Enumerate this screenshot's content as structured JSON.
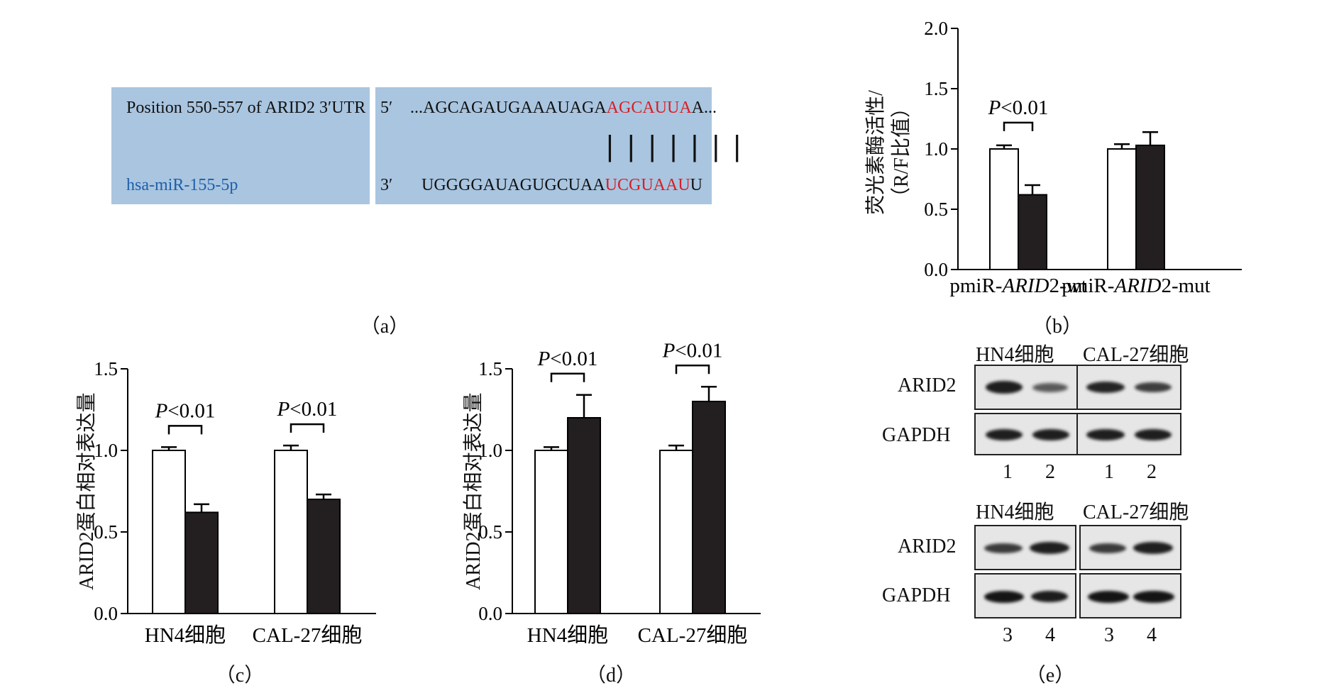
{
  "panel_a": {
    "label": "（a）",
    "row1_label": "Position 550-557 of ARID2 3′UTR",
    "row2_label": "hsa-miR-155-5p",
    "row1_end": "5′",
    "row2_end": "3′",
    "utr_seq_black": "...AGCAGAUGAAAUAGA",
    "utr_seq_red": "AGCAUUA",
    "utr_seq_tail": "A...",
    "pairing": "|||||||",
    "mir_seq_black": "UGGGGAUAGUGCUAA",
    "mir_seq_red": "UCGUAAU",
    "mir_seq_tail": "U",
    "red_color": "#d81f26",
    "blue_color": "#1f5fa8",
    "box_color": "#a9c5e0"
  },
  "chart_data": [
    {
      "id": "b",
      "type": "bar",
      "label": "（b）",
      "ylabel_line1": "荧光素酶活性/",
      "ylabel_line2": "（R/F比值）",
      "ylim": [
        0,
        2.0
      ],
      "yticks": [
        "0.0",
        "0.5",
        "1.0",
        "1.5",
        "2.0"
      ],
      "categories": [
        "pmiR-ARID2-wt",
        "pmiR-ARID2-mut"
      ],
      "category_parts": [
        [
          "pmiR-",
          "ARID",
          "2-wt"
        ],
        [
          "pmiR-",
          "ARID",
          "2-mut"
        ]
      ],
      "series": [
        {
          "fill": "#ffffff",
          "values": [
            1.0,
            1.0
          ],
          "errors": [
            0.03,
            0.04
          ]
        },
        {
          "fill": "#231f20",
          "values": [
            0.62,
            1.03
          ],
          "errors": [
            0.08,
            0.11
          ]
        }
      ],
      "annotations": [
        {
          "category": 0,
          "italic": "P",
          "text": "<0.01"
        }
      ]
    },
    {
      "id": "c",
      "type": "bar",
      "label": "（c）",
      "ylabel": "ARID2蛋白相对表达量",
      "ylim": [
        0,
        1.5
      ],
      "yticks": [
        "0.0",
        "0.5",
        "1.0",
        "1.5"
      ],
      "categories": [
        "HN4细胞",
        "CAL-27细胞"
      ],
      "series": [
        {
          "fill": "#ffffff",
          "values": [
            1.0,
            1.0
          ],
          "errors": [
            0.02,
            0.03
          ]
        },
        {
          "fill": "#231f20",
          "values": [
            0.62,
            0.7
          ],
          "errors": [
            0.05,
            0.03
          ]
        }
      ],
      "annotations": [
        {
          "category": 0,
          "italic": "P",
          "text": "<0.01"
        },
        {
          "category": 1,
          "italic": "P",
          "text": "<0.01"
        }
      ]
    },
    {
      "id": "d",
      "type": "bar",
      "label": "（d）",
      "ylabel": "ARID2蛋白相对表达量",
      "ylim": [
        0,
        1.5
      ],
      "yticks": [
        "0.0",
        "0.5",
        "1.0",
        "1.5"
      ],
      "categories": [
        "HN4细胞",
        "CAL-27细胞"
      ],
      "series": [
        {
          "fill": "#ffffff",
          "values": [
            1.0,
            1.0
          ],
          "errors": [
            0.02,
            0.03
          ]
        },
        {
          "fill": "#231f20",
          "values": [
            1.2,
            1.3
          ],
          "errors": [
            0.14,
            0.09
          ]
        }
      ],
      "annotations": [
        {
          "category": 0,
          "italic": "P",
          "text": "<0.01"
        },
        {
          "category": 1,
          "italic": "P",
          "text": "<0.01"
        }
      ]
    }
  ],
  "panel_e": {
    "label": "（e）",
    "top": {
      "headers": [
        "HN4细胞",
        "CAL-27细胞"
      ],
      "rows": [
        "ARID2",
        "GAPDH"
      ],
      "lanes": [
        "1",
        "2",
        "1",
        "2"
      ]
    },
    "bottom": {
      "headers": [
        "HN4细胞",
        "CAL-27细胞"
      ],
      "rows": [
        "ARID2",
        "GAPDH"
      ],
      "lanes": [
        "3",
        "4",
        "3",
        "4"
      ]
    }
  }
}
